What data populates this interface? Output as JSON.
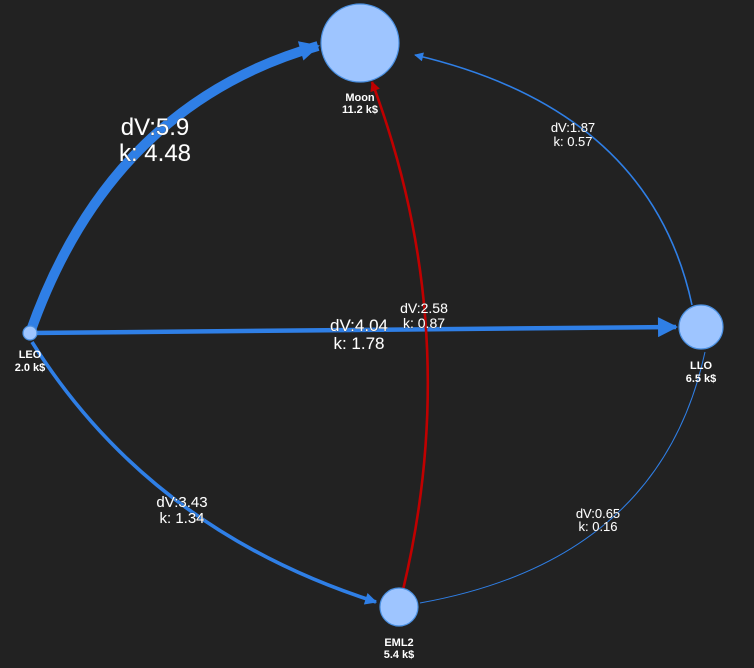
{
  "nodes": [
    {
      "id": "moon",
      "name": "Moon",
      "cost": "11.2 k$"
    },
    {
      "id": "leo",
      "name": "LEO",
      "cost": "2.0 k$"
    },
    {
      "id": "llo",
      "name": "LLO",
      "cost": "6.5 k$"
    },
    {
      "id": "eml2",
      "name": "EML2",
      "cost": "5.4 k$"
    }
  ],
  "edges": [
    {
      "id": "leo-moon",
      "from": "LEO",
      "to": "Moon",
      "dv": "dV:5.9",
      "k": "k: 4.48",
      "color": "#2f7fe6"
    },
    {
      "id": "llo-moon",
      "from": "LLO",
      "to": "Moon",
      "dv": "dV:1.87",
      "k": "k: 0.57",
      "color": "#2f7fe6"
    },
    {
      "id": "leo-llo",
      "from": "LEO",
      "to": "LLO",
      "dv": "dV:4.04",
      "k": "k: 1.78",
      "color": "#2f7fe6"
    },
    {
      "id": "eml2-moon",
      "from": "EML2",
      "to": "Moon",
      "dv": "dV:2.58",
      "k": "k: 0.87",
      "color": "#c00000"
    },
    {
      "id": "leo-eml2",
      "from": "LEO",
      "to": "EML2",
      "dv": "dV:3.43",
      "k": "k: 1.34",
      "color": "#2f7fe6"
    },
    {
      "id": "eml2-llo",
      "from": "EML2",
      "to": "LLO",
      "dv": "dV:0.65",
      "k": "k: 0.16",
      "color": "#2f7fe6"
    }
  ],
  "colors": {
    "background": "#222222",
    "node_fill": "#9ec5ff",
    "node_stroke": "#4a8fe0",
    "edge_blue": "#2f7fe6",
    "edge_red": "#c00000",
    "label_text": "#ffffff"
  }
}
